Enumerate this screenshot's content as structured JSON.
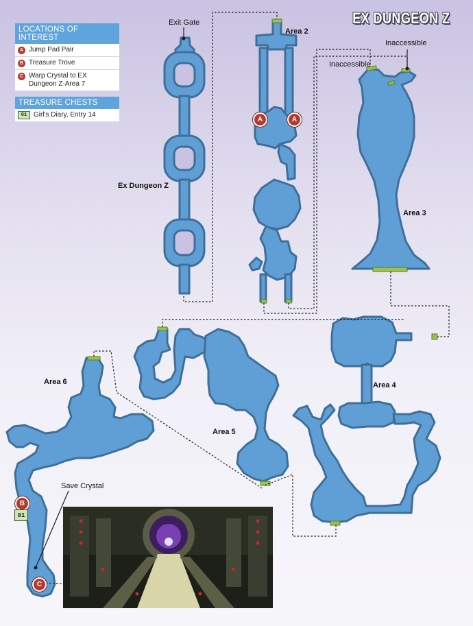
{
  "map_title": "EX DUNGEON Z",
  "legend_locations": {
    "header": "LOCATIONS OF INTEREST",
    "items": [
      {
        "marker": "A",
        "label": "Jump Pad Pair"
      },
      {
        "marker": "B",
        "label": "Treasure Trove"
      },
      {
        "marker": "C",
        "label": "Warp Crystal to EX Dungeon Z-Area 7"
      }
    ]
  },
  "legend_chests": {
    "header": "TREASURE CHESTS",
    "items": [
      {
        "marker": "01",
        "label": "Girl's Diary, Entry 14"
      }
    ]
  },
  "labels": {
    "exit_gate": "Exit Gate",
    "ex_dungeon_z": "Ex Dungeon Z",
    "area2": "Area 2",
    "area3": "Area 3",
    "area4": "Area 4",
    "area5": "Area 5",
    "area6": "Area 6",
    "inaccessible_1": "Inaccessible",
    "inaccessible_2": "Inaccessible",
    "save_crystal": "Save Crystal"
  },
  "markers": {
    "a_left": "A",
    "a_right": "A",
    "b": "B",
    "c": "C",
    "chest": "01"
  },
  "colors": {
    "floor": "#5f9fd6",
    "wall": "#3e6f99",
    "exit": "#9ac24d",
    "marker": "#b23a2e",
    "legend_header": "#5fa4dc"
  }
}
